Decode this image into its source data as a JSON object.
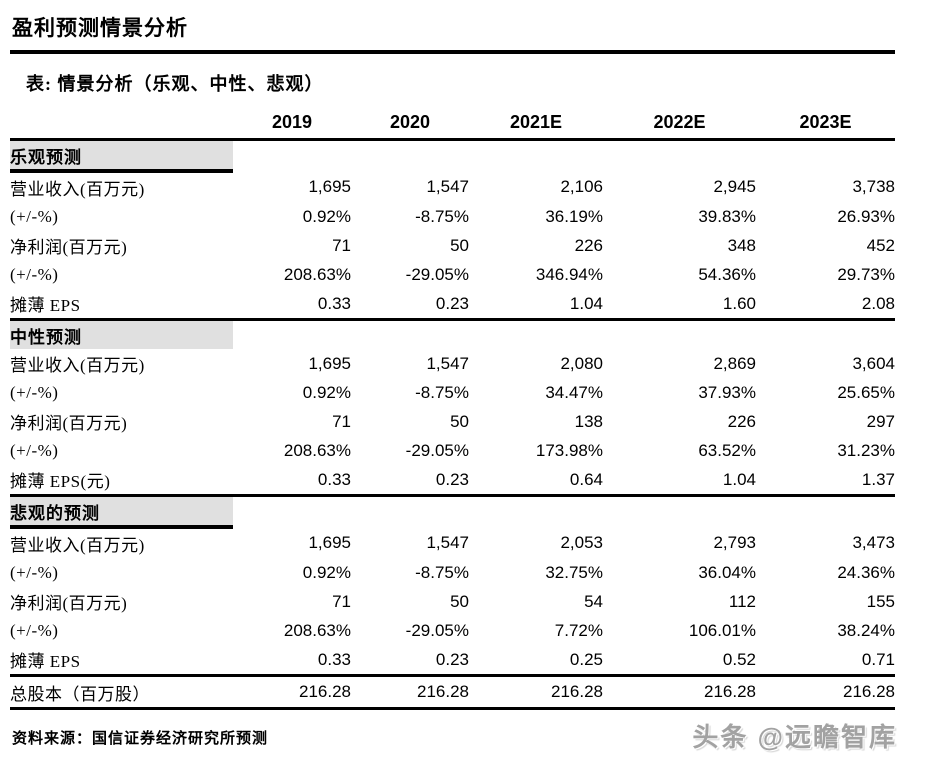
{
  "page": {
    "title": "盈利预测情景分析",
    "subtitle": "表: 情景分析（乐观、中性、悲观）",
    "source": "资料来源：国信证券经济研究所预测",
    "watermark": "头条 @远瞻智库"
  },
  "colors": {
    "section_header_bg": "#e0e0e0",
    "text": "#000000",
    "watermark": "#a2a2a2",
    "rule": "#000000"
  },
  "table": {
    "columns": [
      "2019",
      "2020",
      "2021E",
      "2022E",
      "2023E"
    ],
    "sections": [
      {
        "label": "乐观预测",
        "underline": true,
        "rows": [
          {
            "label": "营业收入(百万元)",
            "values": [
              "1,695",
              "1,547",
              "2,106",
              "2,945",
              "3,738"
            ]
          },
          {
            "label": "(+/-%)",
            "values": [
              "0.92%",
              "-8.75%",
              "36.19%",
              "39.83%",
              "26.93%"
            ]
          },
          {
            "label": "净利润(百万元)",
            "values": [
              "71",
              "50",
              "226",
              "348",
              "452"
            ]
          },
          {
            "label": "(+/-%)",
            "values": [
              "208.63%",
              "-29.05%",
              "346.94%",
              "54.36%",
              "29.73%"
            ]
          },
          {
            "label": "摊薄 EPS",
            "values": [
              "0.33",
              "0.23",
              "1.04",
              "1.60",
              "2.08"
            ]
          }
        ]
      },
      {
        "label": "中性预测",
        "underline": false,
        "rows": [
          {
            "label": "营业收入(百万元)",
            "values": [
              "1,695",
              "1,547",
              "2,080",
              "2,869",
              "3,604"
            ]
          },
          {
            "label": "(+/-%)",
            "values": [
              "0.92%",
              "-8.75%",
              "34.47%",
              "37.93%",
              "25.65%"
            ]
          },
          {
            "label": "净利润(百万元)",
            "values": [
              "71",
              "50",
              "138",
              "226",
              "297"
            ]
          },
          {
            "label": "(+/-%)",
            "values": [
              "208.63%",
              "-29.05%",
              "173.98%",
              "63.52%",
              "31.23%"
            ]
          },
          {
            "label": "摊薄 EPS(元)",
            "values": [
              "0.33",
              "0.23",
              "0.64",
              "1.04",
              "1.37"
            ]
          }
        ]
      },
      {
        "label": "悲观的预测",
        "underline": true,
        "rows": [
          {
            "label": "营业收入(百万元)",
            "values": [
              "1,695",
              "1,547",
              "2,053",
              "2,793",
              "3,473"
            ]
          },
          {
            "label": "(+/-%)",
            "values": [
              "0.92%",
              "-8.75%",
              "32.75%",
              "36.04%",
              "24.36%"
            ]
          },
          {
            "label": "净利润(百万元)",
            "values": [
              "71",
              "50",
              "54",
              "112",
              "155"
            ]
          },
          {
            "label": "(+/-%)",
            "values": [
              "208.63%",
              "-29.05%",
              "7.72%",
              "106.01%",
              "38.24%"
            ]
          },
          {
            "label": "摊薄 EPS",
            "values": [
              "0.33",
              "0.23",
              "0.25",
              "0.52",
              "0.71"
            ]
          }
        ]
      }
    ],
    "total_row": {
      "label": "总股本（百万股）",
      "values": [
        "216.28",
        "216.28",
        "216.28",
        "216.28",
        "216.28"
      ]
    }
  }
}
